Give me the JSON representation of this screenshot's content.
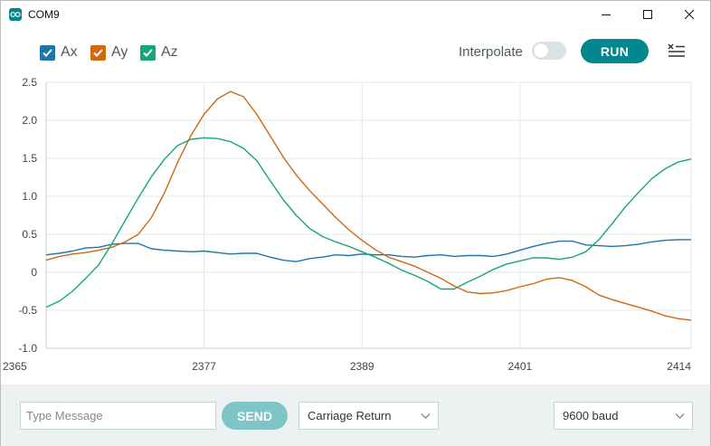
{
  "window": {
    "title": "COM9"
  },
  "legend": [
    {
      "label": "Ax",
      "color": "#1f74ac",
      "checked": true
    },
    {
      "label": "Ay",
      "color": "#d1680e",
      "checked": true
    },
    {
      "label": "Az",
      "color": "#15a57a",
      "checked": true
    }
  ],
  "toolbar": {
    "interpolate_label": "Interpolate",
    "interpolate_on": false,
    "run_label": "RUN"
  },
  "footer": {
    "message_placeholder": "Type Message",
    "send_label": "SEND",
    "line_ending": "Carriage Return",
    "baud_rate": "9600 baud"
  },
  "chart_data": {
    "type": "line",
    "title": "",
    "xlabel": "",
    "ylabel": "",
    "xlim": [
      2365,
      2414
    ],
    "ylim": [
      -1.0,
      2.5
    ],
    "xticks": [
      "2365",
      "2377",
      "2389",
      "2401",
      "2414"
    ],
    "xtick_values": [
      2365,
      2377,
      2389,
      2401,
      2414
    ],
    "yticks": [
      "2.5",
      "2.0",
      "1.5",
      "1.0",
      "0.5",
      "0",
      "-0.5",
      "-1.0"
    ],
    "ytick_values": [
      2.5,
      2.0,
      1.5,
      1.0,
      0.5,
      0,
      -0.5,
      -1.0
    ],
    "grid": true,
    "x": [
      2365,
      2366,
      2367,
      2368,
      2369,
      2370,
      2371,
      2372,
      2373,
      2374,
      2375,
      2376,
      2377,
      2378,
      2379,
      2380,
      2381,
      2382,
      2383,
      2384,
      2385,
      2386,
      2387,
      2388,
      2389,
      2390,
      2391,
      2392,
      2393,
      2394,
      2395,
      2396,
      2397,
      2398,
      2399,
      2400,
      2401,
      2402,
      2403,
      2404,
      2405,
      2406,
      2407,
      2408,
      2409,
      2410,
      2411,
      2412,
      2413,
      2414
    ],
    "series": [
      {
        "name": "Ax",
        "color": "#1f74ac",
        "values": [
          0.23,
          0.25,
          0.28,
          0.32,
          0.33,
          0.37,
          0.38,
          0.38,
          0.31,
          0.29,
          0.28,
          0.27,
          0.28,
          0.26,
          0.24,
          0.25,
          0.25,
          0.2,
          0.16,
          0.14,
          0.18,
          0.2,
          0.23,
          0.22,
          0.24,
          0.23,
          0.23,
          0.21,
          0.2,
          0.22,
          0.23,
          0.21,
          0.22,
          0.22,
          0.21,
          0.24,
          0.29,
          0.34,
          0.38,
          0.41,
          0.41,
          0.36,
          0.35,
          0.34,
          0.35,
          0.37,
          0.4,
          0.42,
          0.43,
          0.43
        ]
      },
      {
        "name": "Ay",
        "color": "#d1680e",
        "values": [
          0.16,
          0.21,
          0.24,
          0.26,
          0.29,
          0.33,
          0.4,
          0.5,
          0.72,
          1.05,
          1.45,
          1.8,
          2.08,
          2.28,
          2.38,
          2.31,
          2.08,
          1.8,
          1.52,
          1.28,
          1.08,
          0.9,
          0.72,
          0.56,
          0.42,
          0.3,
          0.2,
          0.14,
          0.08,
          0.0,
          -0.08,
          -0.18,
          -0.26,
          -0.28,
          -0.27,
          -0.24,
          -0.19,
          -0.15,
          -0.09,
          -0.07,
          -0.11,
          -0.19,
          -0.3,
          -0.36,
          -0.41,
          -0.46,
          -0.51,
          -0.57,
          -0.61,
          -0.63
        ]
      },
      {
        "name": "Az",
        "color": "#15a57a",
        "values": [
          -0.46,
          -0.38,
          -0.25,
          -0.08,
          0.1,
          0.38,
          0.68,
          0.98,
          1.26,
          1.49,
          1.67,
          1.75,
          1.77,
          1.76,
          1.72,
          1.63,
          1.47,
          1.21,
          0.96,
          0.75,
          0.58,
          0.47,
          0.4,
          0.34,
          0.27,
          0.2,
          0.12,
          0.03,
          -0.04,
          -0.12,
          -0.22,
          -0.22,
          -0.13,
          -0.05,
          0.04,
          0.11,
          0.15,
          0.19,
          0.19,
          0.17,
          0.2,
          0.27,
          0.43,
          0.64,
          0.86,
          1.05,
          1.23,
          1.36,
          1.45,
          1.49
        ]
      }
    ]
  }
}
